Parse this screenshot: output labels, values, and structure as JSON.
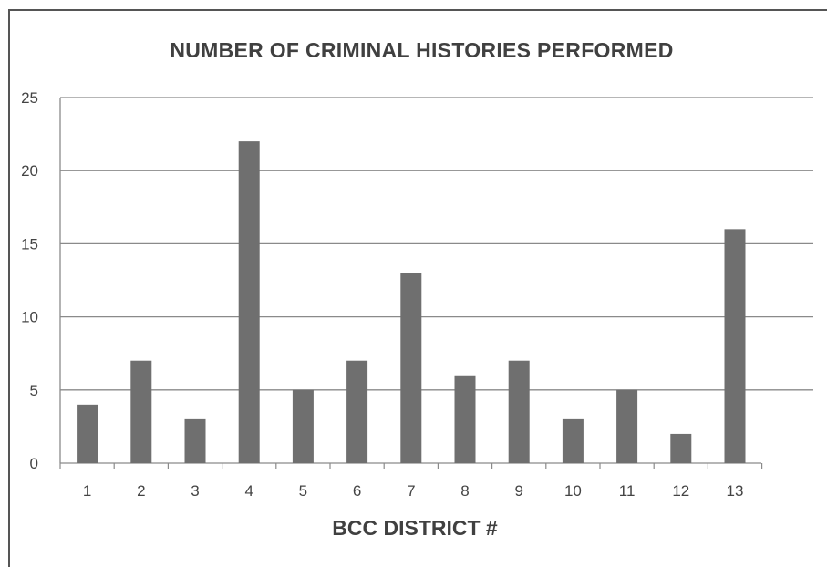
{
  "chart_data": {
    "type": "bar",
    "title": "NUMBER OF CRIMINAL HISTORIES PERFORMED",
    "xlabel": "BCC DISTRICT #",
    "ylabel": "",
    "categories": [
      "1",
      "2",
      "3",
      "4",
      "5",
      "6",
      "7",
      "8",
      "9",
      "10",
      "11",
      "12",
      "13"
    ],
    "values": [
      4,
      7,
      3,
      22,
      5,
      7,
      13,
      6,
      7,
      3,
      5,
      2,
      16
    ],
    "ylim": [
      0,
      25
    ],
    "yticks": [
      0,
      5,
      10,
      15,
      20,
      25
    ],
    "grid": true,
    "legend": "none",
    "bar_color": "#6f6f6f",
    "grid_color": "#8a8a8a"
  }
}
